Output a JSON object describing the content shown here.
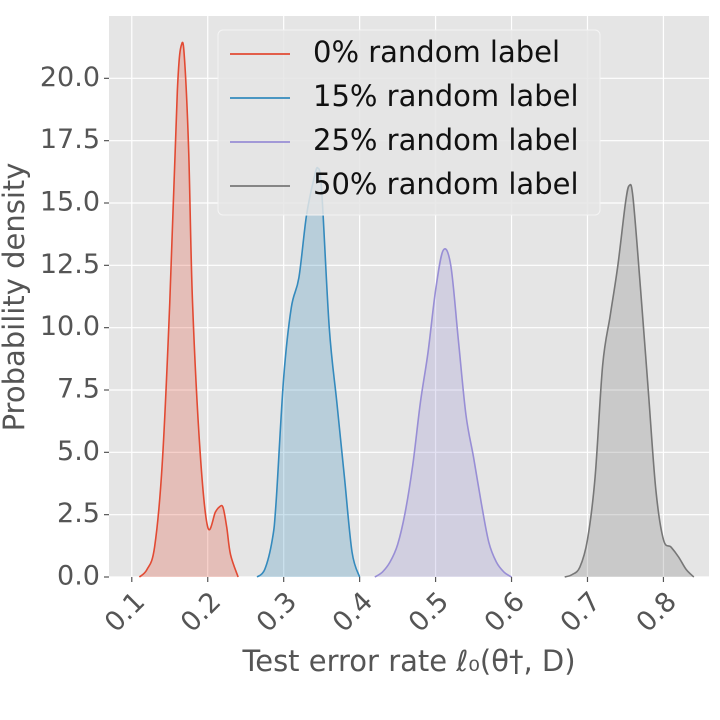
{
  "chart_data": {
    "type": "area",
    "xlabel": "Test error rate ℓ₀(θ†, D)",
    "ylabel": "Probability density",
    "xlim": [
      0.07,
      0.86
    ],
    "ylim": [
      0,
      22.5
    ],
    "xticks": [
      "0.1",
      "0.2",
      "0.3",
      "0.4",
      "0.5",
      "0.6",
      "0.7",
      "0.8"
    ],
    "yticks": [
      "0.0",
      "2.5",
      "5.0",
      "7.5",
      "10.0",
      "12.5",
      "15.0",
      "17.5",
      "20.0"
    ],
    "grid": true,
    "legend_position": "top",
    "series": [
      {
        "name": "0% random label",
        "color": "#E24A33",
        "x": [
          0.11,
          0.12,
          0.13,
          0.14,
          0.15,
          0.16,
          0.166,
          0.17,
          0.175,
          0.18,
          0.19,
          0.2,
          0.21,
          0.215,
          0.22,
          0.225,
          0.23,
          0.24
        ],
        "y": [
          0,
          0.3,
          1.2,
          4.5,
          11.0,
          19.5,
          21.4,
          20.5,
          17.0,
          11.0,
          5.0,
          2.0,
          2.6,
          2.8,
          2.8,
          2.0,
          0.9,
          0
        ]
      },
      {
        "name": "15% random label",
        "color": "#348ABD",
        "x": [
          0.265,
          0.275,
          0.285,
          0.29,
          0.3,
          0.31,
          0.32,
          0.33,
          0.34,
          0.345,
          0.35,
          0.36,
          0.37,
          0.38,
          0.39,
          0.4
        ],
        "y": [
          0,
          0.3,
          1.5,
          3.0,
          8.0,
          10.8,
          12.0,
          14.5,
          16.0,
          16.4,
          15.5,
          10.0,
          7.0,
          4.0,
          1.0,
          0
        ]
      },
      {
        "name": "25% random label",
        "color": "#988ED5",
        "x": [
          0.42,
          0.43,
          0.44,
          0.45,
          0.46,
          0.47,
          0.48,
          0.49,
          0.5,
          0.51,
          0.52,
          0.53,
          0.54,
          0.55,
          0.56,
          0.57,
          0.58,
          0.59,
          0.6
        ],
        "y": [
          0,
          0.2,
          0.6,
          1.3,
          2.6,
          4.5,
          7.0,
          9.0,
          11.5,
          13.1,
          12.5,
          9.5,
          6.5,
          4.8,
          3.0,
          1.4,
          0.6,
          0.2,
          0
        ]
      },
      {
        "name": "50% random label",
        "color": "#777777",
        "x": [
          0.67,
          0.68,
          0.69,
          0.7,
          0.71,
          0.72,
          0.73,
          0.74,
          0.75,
          0.755,
          0.76,
          0.77,
          0.78,
          0.79,
          0.8,
          0.81,
          0.82,
          0.83,
          0.84
        ],
        "y": [
          0,
          0.1,
          0.4,
          1.5,
          4.0,
          8.5,
          10.5,
          12.5,
          15.0,
          15.7,
          15.2,
          11.5,
          7.5,
          3.5,
          1.5,
          1.2,
          0.8,
          0.3,
          0
        ]
      }
    ]
  }
}
